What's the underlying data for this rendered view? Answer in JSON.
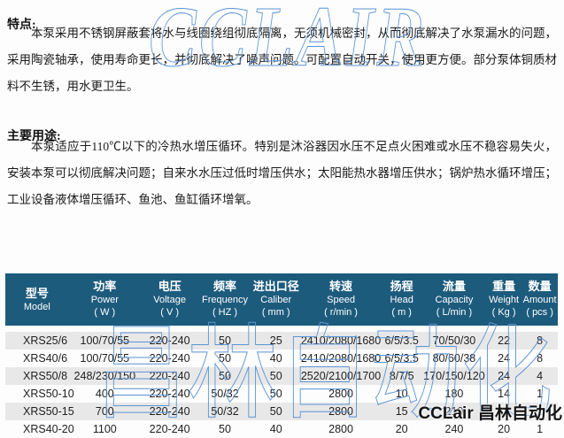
{
  "document": {
    "sections": [
      {
        "heading": "特点:",
        "body": "本泵采用不锈钢屏蔽套将水与线圈绕组彻底隔离，无须机械密封，从而彻底解决了水泵漏水的问题，采用陶瓷轴承，使用寿命更长，并彻底解决了噪声问题。可配置自动开关，使用更方便。部分泵体铜质材料不生锈，用水更卫生。"
      },
      {
        "heading": "主要用途:",
        "body": "本泵适应于110℃以下的冷热水增压循环。特别是沐浴器因水压不足点火困难或水压不稳容易失火，安装本泵可以彻底解决问题；自来水水压过低时增压供水；太阳能热水器增压供水；锅炉热水循环增压；工业设备液体增压循环、鱼池、鱼缸循环增氧。"
      }
    ]
  },
  "watermarks": {
    "top_outline_text": "CCLAIR",
    "table_outline_text": "昌林自动化",
    "corner_text": "CCLair 昌林自动化",
    "outline_color": "#5b94d6"
  },
  "spec_table": {
    "header_bg": "#1d5b7d",
    "stripe_bg": "#e8e8e8",
    "columns": [
      {
        "zh": "型号",
        "en": "Model",
        "unit": ""
      },
      {
        "zh": "功率",
        "en": "Power",
        "unit": "( W )"
      },
      {
        "zh": "电压",
        "en": "Voltage",
        "unit": "( V )"
      },
      {
        "zh": "频率",
        "en": "Frequency",
        "unit": "( HZ )"
      },
      {
        "zh": "进出口径",
        "en": "Caliber",
        "unit": "( mm )"
      },
      {
        "zh": "转速",
        "en": "Speed",
        "unit": "( r/min )"
      },
      {
        "zh": "扬程",
        "en": "Head",
        "unit": "( m )"
      },
      {
        "zh": "流量",
        "en": "Capacity",
        "unit": "( L/min )"
      },
      {
        "zh": "重量",
        "en": "Weight",
        "unit": "( Kg )"
      },
      {
        "zh": "数量",
        "en": "Amount",
        "unit": "( pcs )"
      }
    ],
    "rows": [
      [
        "XRS25/6",
        "100/70/55",
        "220-240",
        "50",
        "25",
        "2410/2080/1680",
        "6/5/3.5",
        "70/50/30",
        "22",
        "8"
      ],
      [
        "XRS40/6",
        "100/70/55",
        "220-240",
        "50",
        "40",
        "2410/2080/1680",
        "6/5/3.5",
        "80/60/38",
        "24",
        "8"
      ],
      [
        "XRS50/8",
        "248/230/150",
        "220-240",
        "50",
        "50",
        "2520/2100/1700",
        "8/7/5",
        "170/150/120",
        "24",
        "4"
      ],
      [
        "XRS50-10",
        "400",
        "220-240",
        "50/32",
        "50",
        "2800",
        "10",
        "180",
        "14",
        "1"
      ],
      [
        "XRS50-15",
        "700",
        "220-240",
        "50/32",
        "50",
        "2800",
        "15",
        "210",
        "18",
        "1"
      ],
      [
        "XRS40-20",
        "1100",
        "220-240",
        "50",
        "40",
        "2800",
        "20",
        "240",
        "20",
        "1"
      ]
    ]
  }
}
